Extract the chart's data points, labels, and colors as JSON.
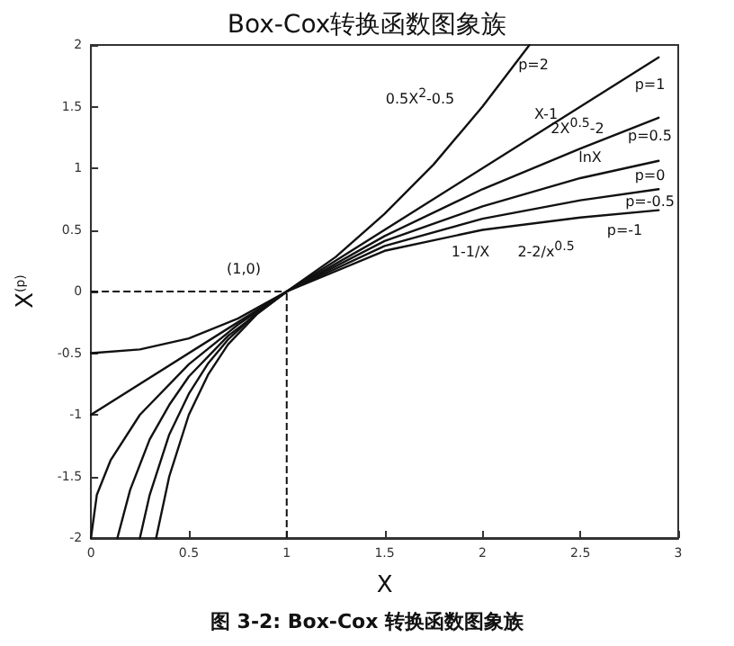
{
  "chart_data": {
    "type": "line",
    "title": "Box-Cox转换函数图象族",
    "xlabel": "X",
    "ylabel": "X$^{(p)}$",
    "xlim": [
      0,
      3
    ],
    "xticks": [
      0,
      0.5,
      1,
      1.5,
      2,
      2.5,
      3
    ],
    "ylim": [
      -2,
      2
    ],
    "yticks": [
      -2,
      -1.5,
      -1,
      -0.5,
      0,
      0.5,
      1,
      1.5,
      2
    ],
    "marker": "none",
    "line_style": "solid",
    "series": [
      {
        "color": "#111111",
        "x": [
          0,
          0.25,
          0.5,
          0.75,
          1,
          1.25,
          1.5,
          1.75,
          2,
          2.24
        ],
        "values": [
          -0.5,
          -0.47,
          -0.38,
          -0.22,
          0,
          0.28,
          0.63,
          1.03,
          1.5,
          2
        ]
      },
      {
        "color": "#111111",
        "x": [
          0,
          1,
          2.9
        ],
        "values": [
          -1,
          0,
          1.9
        ]
      },
      {
        "color": "#111111",
        "x": [
          0,
          0.03,
          0.1,
          0.25,
          0.5,
          0.75,
          1,
          1.5,
          2,
          2.5,
          2.9
        ],
        "values": [
          -2,
          -1.65,
          -1.37,
          -1,
          -0.59,
          -0.27,
          0,
          0.45,
          0.83,
          1.16,
          1.41
        ]
      },
      {
        "color": "#111111",
        "x": [
          0.135,
          0.2,
          0.3,
          0.4,
          0.5,
          0.7,
          1,
          1.5,
          2,
          2.5,
          2.9
        ],
        "values": [
          -2,
          -1.61,
          -1.2,
          -0.92,
          -0.69,
          -0.36,
          0,
          0.41,
          0.69,
          0.92,
          1.06
        ]
      },
      {
        "color": "#111111",
        "x": [
          0.25,
          0.3,
          0.4,
          0.5,
          0.6,
          0.7,
          0.85,
          1,
          1.5,
          2,
          2.5,
          2.9
        ],
        "values": [
          -2,
          -1.65,
          -1.16,
          -0.83,
          -0.58,
          -0.39,
          -0.17,
          0,
          0.37,
          0.59,
          0.74,
          0.83
        ]
      },
      {
        "color": "#111111",
        "x": [
          0.333,
          0.4,
          0.5,
          0.6,
          0.7,
          0.85,
          1,
          1.5,
          2,
          2.5,
          2.9
        ],
        "values": [
          -2,
          -1.5,
          -1,
          -0.67,
          -0.43,
          -0.18,
          0,
          0.33,
          0.5,
          0.6,
          0.66
        ]
      }
    ],
    "ref_lines": [
      {
        "axis": "x",
        "value": 1,
        "line_style": "dashed",
        "color": "#111111"
      },
      {
        "axis": "y",
        "value": 0,
        "line_style": "dashed",
        "color": "#111111"
      }
    ],
    "annotations": [
      "p=2",
      "0.5X$^{2}$-0.5",
      "p=1",
      "X-1",
      "2X$^{0.5}$-2",
      "p=0.5",
      "lnX",
      "p=0",
      "p=-0.5",
      "p=-1",
      "1-1/X",
      "2-2/x$^{0.5}$",
      "(1,0)",
      "图 3-2: Box-Cox 转换函数图象族"
    ]
  }
}
